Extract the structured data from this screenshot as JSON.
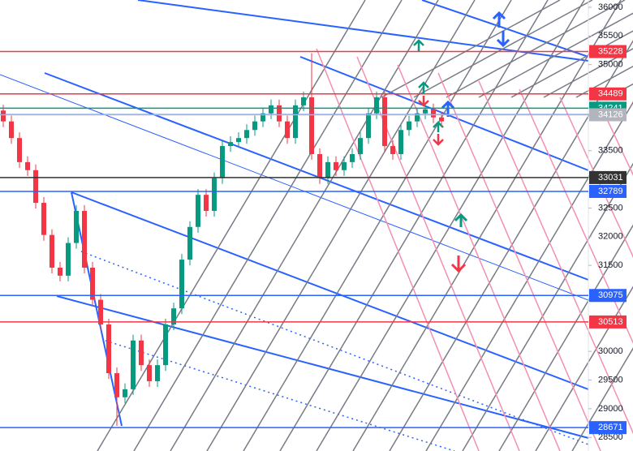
{
  "chart_data": {
    "type": "candlestick",
    "ylim": [
      28263,
      36127
    ],
    "yticks": [
      28500,
      29000,
      29500,
      30000,
      31500,
      32000,
      32500,
      33500,
      35000,
      35500,
      36000
    ],
    "up_color": "#089981",
    "down_color": "#f23645",
    "open": [
      34200,
      34010,
      33720,
      33300,
      33160,
      32590,
      32030,
      31460,
      31320,
      31890,
      32450,
      31460,
      30900,
      30470,
      29620,
      29200,
      29340,
      30190,
      29760,
      29480,
      29760,
      30470,
      30750,
      31600,
      32170,
      32730,
      32450,
      33020,
      33580,
      33650,
      33720,
      33860,
      34010,
      34150,
      34290,
      34010,
      33720,
      34290,
      34430,
      33440,
      33020,
      33300,
      33160,
      33300,
      33440,
      33720,
      34150,
      34430,
      33580,
      33440,
      33860,
      34010,
      34150,
      34220,
      34080
    ],
    "high": [
      34300,
      34110,
      33820,
      33400,
      33260,
      32690,
      32130,
      31560,
      31990,
      32550,
      32550,
      31560,
      31000,
      30570,
      29720,
      29440,
      30290,
      30290,
      29860,
      29860,
      30570,
      30850,
      31700,
      32270,
      32830,
      32830,
      33120,
      33680,
      33750,
      33820,
      33960,
      34110,
      34250,
      34390,
      34390,
      34110,
      34390,
      34530,
      35200,
      33540,
      33400,
      33400,
      33400,
      33540,
      33820,
      34250,
      34530,
      34530,
      33680,
      33960,
      34110,
      34250,
      34320,
      34320,
      34180
    ],
    "low": [
      33910,
      33620,
      33200,
      33060,
      32490,
      31930,
      31360,
      31220,
      31220,
      31790,
      31360,
      30800,
      30370,
      29520,
      28700,
      29100,
      29240,
      29660,
      29380,
      29380,
      29660,
      30370,
      30650,
      31500,
      32070,
      32350,
      32350,
      32920,
      33480,
      33550,
      33620,
      33760,
      33910,
      34050,
      33910,
      33620,
      33620,
      34190,
      33340,
      32920,
      32920,
      33060,
      33060,
      33200,
      33340,
      33620,
      34050,
      33480,
      33340,
      33340,
      33760,
      33910,
      34050,
      33980,
      33910
    ],
    "close": [
      34010,
      33720,
      33300,
      33160,
      32590,
      32030,
      31460,
      31320,
      31890,
      32450,
      31460,
      30900,
      30470,
      29620,
      29200,
      29340,
      30190,
      29760,
      29480,
      29760,
      30470,
      30750,
      31600,
      32170,
      32730,
      32450,
      33020,
      33580,
      33650,
      33720,
      33860,
      34010,
      34150,
      34290,
      34010,
      33720,
      34290,
      34430,
      33440,
      33020,
      33300,
      33160,
      33300,
      33440,
      33720,
      34150,
      34430,
      33580,
      33440,
      33860,
      34010,
      34150,
      34220,
      34080,
      34010
    ],
    "price_tags": [
      {
        "value": 35228,
        "color": "#f23645"
      },
      {
        "value": 34489,
        "color": "#f23645"
      },
      {
        "value": 34241,
        "color": "#089981"
      },
      {
        "value": 34129,
        "color": "#2962ff"
      },
      {
        "value": 34126,
        "color": "#b2b5be"
      },
      {
        "value": 33031,
        "color": "#333333"
      },
      {
        "value": 32789,
        "color": "#2962ff"
      },
      {
        "value": 30975,
        "color": "#2962ff"
      },
      {
        "value": 30513,
        "color": "#f23645"
      },
      {
        "value": 28671,
        "color": "#2962ff"
      }
    ]
  }
}
